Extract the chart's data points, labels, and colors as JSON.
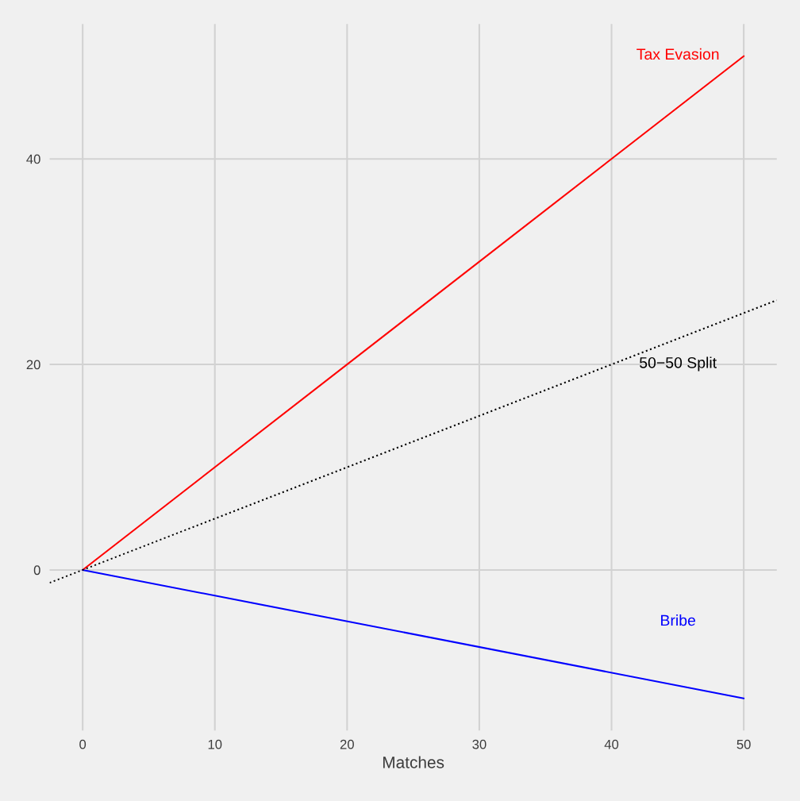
{
  "chart_data": {
    "type": "line",
    "xlabel": "Matches",
    "series": [
      {
        "name": "Tax Evasion",
        "color": "#ff0000",
        "x": [
          0,
          50
        ],
        "values": [
          0,
          50
        ],
        "line_style": "solid"
      },
      {
        "name": "Bribe",
        "color": "#0000ff",
        "x": [
          0,
          50
        ],
        "values": [
          0,
          -12.5
        ],
        "line_style": "solid"
      },
      {
        "name": "50−50 Split",
        "color": "#000000",
        "x": [
          -2.5,
          52.5
        ],
        "values": [
          -1.25,
          26.25
        ],
        "line_style": "dotted"
      }
    ],
    "xlim": [
      -2.5,
      52.5
    ],
    "ylim": [
      -15.625,
      53.125
    ],
    "xticks": [
      0,
      10,
      20,
      30,
      40,
      50
    ],
    "yticks": [
      0,
      20,
      40
    ],
    "grid": true,
    "marker": "none",
    "legend": false
  }
}
